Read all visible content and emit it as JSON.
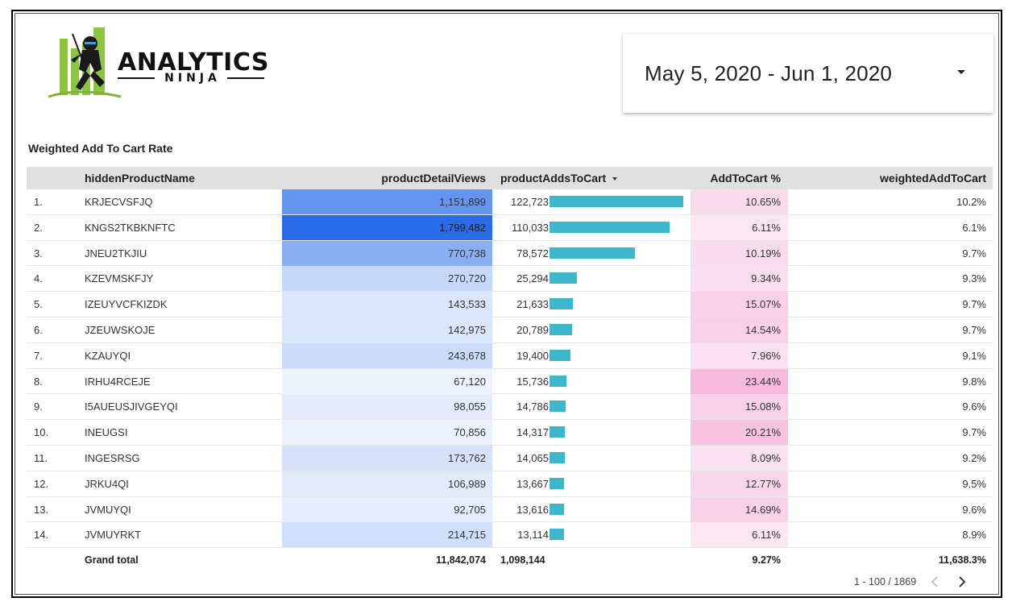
{
  "logo": {
    "main": "ANALYTICS",
    "sub": "NINJA"
  },
  "date_range": {
    "value": "May 5, 2020 - Jun 1, 2020"
  },
  "table": {
    "title": "Weighted Add To Cart Rate",
    "columns": {
      "name": "hiddenProductName",
      "views": "productDetailViews",
      "adds": "productAddsToCart",
      "rate": "AddToCart %",
      "weighted": "weightedAddToCart"
    },
    "rows": [
      {
        "idx": "1.",
        "name": "KRJECVSFJQ",
        "views": "1,151,899",
        "adds": "122,723",
        "rate": "10.65%",
        "weighted": "10.2%"
      },
      {
        "idx": "2.",
        "name": "KNGS2TKBKNFTC",
        "views": "1,799,482",
        "adds": "110,033",
        "rate": "6.11%",
        "weighted": "6.1%"
      },
      {
        "idx": "3.",
        "name": "JNEU2TKJIU",
        "views": "770,738",
        "adds": "78,572",
        "rate": "10.19%",
        "weighted": "9.7%"
      },
      {
        "idx": "4.",
        "name": "KZEVMSKFJY",
        "views": "270,720",
        "adds": "25,294",
        "rate": "9.34%",
        "weighted": "9.3%"
      },
      {
        "idx": "5.",
        "name": "IZEUYVCFKIZDK",
        "views": "143,533",
        "adds": "21,633",
        "rate": "15.07%",
        "weighted": "9.7%"
      },
      {
        "idx": "6.",
        "name": "JZEUWSKOJE",
        "views": "142,975",
        "adds": "20,789",
        "rate": "14.54%",
        "weighted": "9.7%"
      },
      {
        "idx": "7.",
        "name": "KZAUYQI",
        "views": "243,678",
        "adds": "19,400",
        "rate": "7.96%",
        "weighted": "9.1%"
      },
      {
        "idx": "8.",
        "name": "IRHU4RCEJE",
        "views": "67,120",
        "adds": "15,736",
        "rate": "23.44%",
        "weighted": "9.8%"
      },
      {
        "idx": "9.",
        "name": "I5AUEUSJIVGEYQI",
        "views": "98,055",
        "adds": "14,786",
        "rate": "15.08%",
        "weighted": "9.6%"
      },
      {
        "idx": "10.",
        "name": "INEUGSI",
        "views": "70,856",
        "adds": "14,317",
        "rate": "20.21%",
        "weighted": "9.7%"
      },
      {
        "idx": "11.",
        "name": "INGESRSG",
        "views": "173,762",
        "adds": "14,065",
        "rate": "8.09%",
        "weighted": "9.2%"
      },
      {
        "idx": "12.",
        "name": "JRKU4QI",
        "views": "106,989",
        "adds": "13,667",
        "rate": "12.77%",
        "weighted": "9.5%"
      },
      {
        "idx": "13.",
        "name": "JVMUYQI",
        "views": "92,705",
        "adds": "13,616",
        "rate": "14.69%",
        "weighted": "9.6%"
      },
      {
        "idx": "14.",
        "name": "JVMUYRKT",
        "views": "214,715",
        "adds": "13,114",
        "rate": "6.11%",
        "weighted": "8.9%"
      }
    ],
    "total": {
      "label": "Grand total",
      "views": "11,842,074",
      "adds": "1,098,144",
      "rate": "9.27%",
      "weighted": "11,638.3%"
    }
  },
  "pagination": {
    "text": "1 - 100 / 1869"
  },
  "colors": {
    "bar": "#3cb7cc",
    "views_heat_low": "#eef3fd",
    "views_heat_high": "#2a6ce8",
    "rate_heat_low": "#fbe7f2",
    "rate_heat_high": "#f6bbdd"
  }
}
